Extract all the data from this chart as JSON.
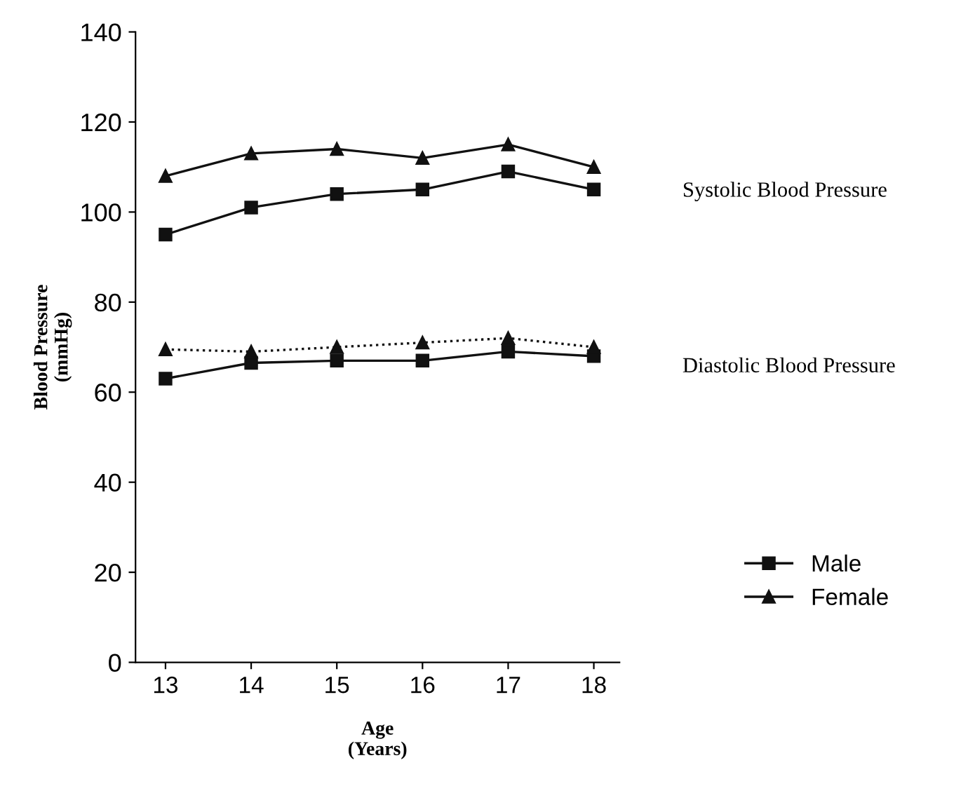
{
  "chart_data": {
    "type": "line",
    "xlabel": "Age\n(Years)",
    "ylabel": "Blood Pressure\n(mmHg)",
    "categories": [
      "13",
      "14",
      "15",
      "16",
      "17",
      "18"
    ],
    "series": [
      {
        "name": "Male",
        "color": "#111111",
        "marker": "square",
        "line_style": "solid",
        "values": [
          95,
          101,
          104,
          105,
          109,
          105
        ]
      },
      {
        "name": "Female",
        "color": "#111111",
        "marker": "triangle",
        "line_style": "solid",
        "values": [
          108,
          113,
          114,
          112,
          115,
          110
        ]
      },
      {
        "color": "#111111",
        "marker": "square",
        "line_style": "solid",
        "values": [
          63,
          66.5,
          67,
          67,
          69,
          68
        ]
      },
      {
        "color": "#111111",
        "marker": "triangle",
        "line_style": "dotted",
        "values": [
          69.5,
          69,
          70,
          71,
          72,
          70
        ]
      }
    ],
    "ylim": [
      0,
      140
    ],
    "yticks": [
      0,
      20,
      40,
      60,
      80,
      100,
      120,
      140
    ],
    "grid": false,
    "legend": "bottom right",
    "annotations": [
      "Systolic Blood Pressure",
      "Diastolic Blood Pressure"
    ]
  }
}
